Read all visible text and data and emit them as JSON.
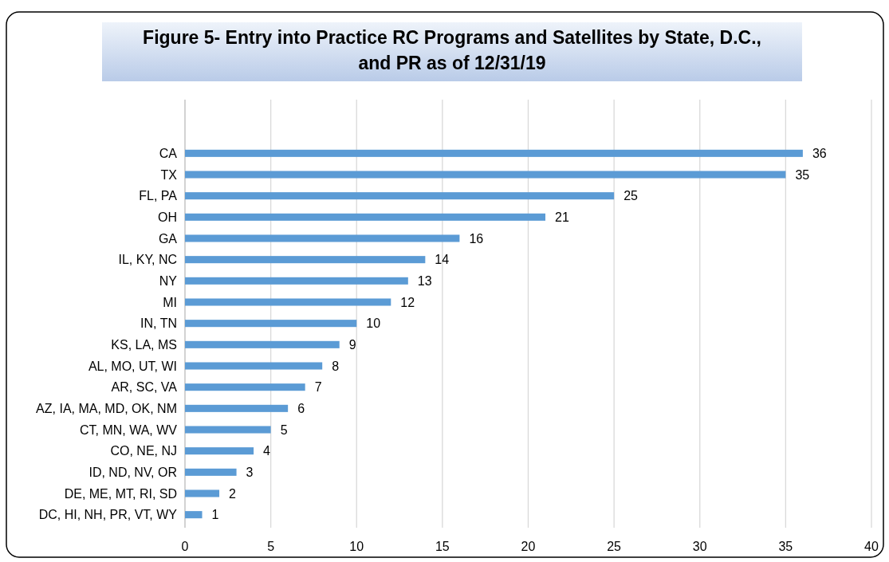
{
  "chart_data": {
    "type": "bar",
    "orientation": "horizontal",
    "title": "Figure 5- Entry into Practice  RC Programs and Satellites by State, D.C., and PR as of 12/31/19",
    "categories": [
      "CA",
      "TX",
      "FL, PA",
      "OH",
      "GA",
      "IL, KY, NC",
      "NY",
      "MI",
      "IN, TN",
      "KS, LA, MS",
      "AL, MO, UT, WI",
      "AR, SC, VA",
      "AZ, IA, MA, MD, OK, NM",
      "CT, MN, WA, WV",
      "CO, NE, NJ",
      "ID, ND, NV, OR",
      "DE, ME, MT, RI, SD",
      "DC, HI, NH, PR, VT, WY"
    ],
    "values": [
      36,
      35,
      25,
      21,
      16,
      14,
      13,
      12,
      10,
      9,
      8,
      7,
      6,
      5,
      4,
      3,
      2,
      1
    ],
    "color": "#5b9bd5",
    "xlim": [
      0,
      40
    ],
    "xticks": [
      0,
      5,
      10,
      15,
      20,
      25,
      30,
      35,
      40
    ],
    "grid": "x",
    "data_labels": true
  }
}
